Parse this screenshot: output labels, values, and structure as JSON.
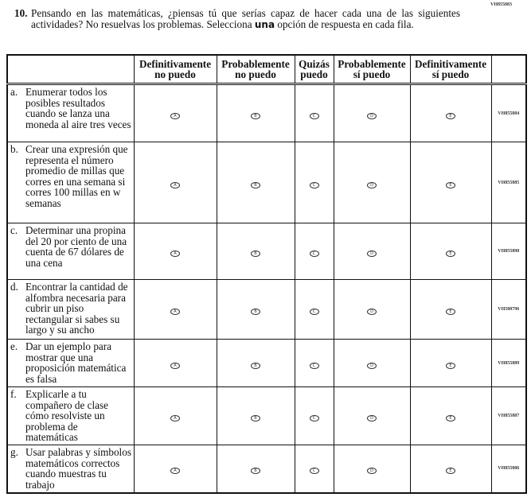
{
  "page_code": "VH855883",
  "question": {
    "number": "10.",
    "text_before": "Pensando en las matemáticas, ¿piensas tú que serías capaz de hacer cada una de las siguientes actividades? No resuelvas los problemas. Selecciona ",
    "emphasis": "una",
    "text_after": " opción de respuesta en cada fila."
  },
  "columns": [
    {
      "line1": "Definitivamente",
      "line2": "no puedo"
    },
    {
      "line1": "Probablemente",
      "line2": "no puedo"
    },
    {
      "line1": "Quizás",
      "line2": "puedo"
    },
    {
      "line1": "Probablemente",
      "line2": "sí puedo"
    },
    {
      "line1": "Definitivamente",
      "line2": "sí puedo"
    }
  ],
  "bubbles": [
    "A",
    "B",
    "C",
    "D",
    "E"
  ],
  "rows": [
    {
      "letter": "a.",
      "text": "Enumerar todos los posibles resultados cuando se lanza una moneda al aire tres veces",
      "code": "VH855884"
    },
    {
      "letter": "b.",
      "text": "Crear una expresión que representa el número promedio de millas que corres en una semana si corres 100 millas en w semanas",
      "code": "VH855885"
    },
    {
      "letter": "c.",
      "text": "Determinar una propina del 20 por ciento de una cuenta de 67 dólares de una cena",
      "code": "VH855890"
    },
    {
      "letter": "d.",
      "text": "Encontrar la cantidad de alfombra necesaria para cubrir un piso rectangular si sabes su largo y su ancho",
      "code": "VH580796"
    },
    {
      "letter": "e.",
      "text": "Dar un ejemplo para mostrar que una proposición matemática es falsa",
      "code": "VH855889"
    },
    {
      "letter": "f.",
      "text": "Explicarle a tu compañero de clase cómo resolviste un problema de matemáticas",
      "code": "VH855887"
    },
    {
      "letter": "g.",
      "text": "Usar palabras y símbolos matemáticos correctos cuando muestras tu trabajo",
      "code": "VH855886"
    }
  ]
}
